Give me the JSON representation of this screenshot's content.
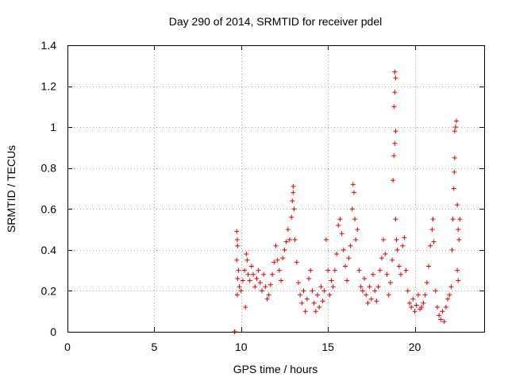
{
  "chart_data": {
    "type": "scatter",
    "title": "Day 290 of 2014, SRMTID for receiver pdel",
    "xlabel": "GPS time / hours",
    "ylabel": "SRMTID / TECUs",
    "xlim": [
      0,
      24
    ],
    "ylim": [
      0,
      1.4
    ],
    "x_ticks": [
      0,
      5,
      10,
      15,
      20
    ],
    "x_tick_labels": [
      "0",
      "5",
      "10",
      "15",
      "20"
    ],
    "y_ticks": [
      0,
      0.2,
      0.4,
      0.6,
      0.8,
      1.0,
      1.2,
      1.4
    ],
    "y_tick_labels": [
      "0",
      "0.2",
      "0.4",
      "0.6",
      "0.8",
      "1",
      "1.2",
      "1.4"
    ],
    "grid": true,
    "marker_color": "#e00000",
    "series": [
      {
        "name": "SRMTID",
        "marker": "plus",
        "points": [
          [
            9.62,
            0.0
          ],
          [
            9.64,
            0.0
          ],
          [
            9.75,
            0.49
          ],
          [
            9.78,
            0.45
          ],
          [
            9.8,
            0.42
          ],
          [
            9.75,
            0.35
          ],
          [
            9.8,
            0.26
          ],
          [
            9.78,
            0.18
          ],
          [
            9.85,
            0.3
          ],
          [
            9.9,
            0.22
          ],
          [
            10.0,
            0.2
          ],
          [
            10.1,
            0.25
          ],
          [
            10.2,
            0.3
          ],
          [
            10.25,
            0.12
          ],
          [
            10.3,
            0.38
          ],
          [
            10.35,
            0.35
          ],
          [
            10.4,
            0.28
          ],
          [
            10.5,
            0.25
          ],
          [
            10.6,
            0.32
          ],
          [
            10.7,
            0.28
          ],
          [
            10.8,
            0.22
          ],
          [
            10.9,
            0.26
          ],
          [
            11.0,
            0.3
          ],
          [
            11.1,
            0.24
          ],
          [
            11.2,
            0.2
          ],
          [
            11.3,
            0.28
          ],
          [
            11.4,
            0.22
          ],
          [
            11.5,
            0.16
          ],
          [
            11.6,
            0.18
          ],
          [
            11.7,
            0.23
          ],
          [
            11.8,
            0.28
          ],
          [
            11.9,
            0.34
          ],
          [
            12.0,
            0.42
          ],
          [
            12.1,
            0.35
          ],
          [
            12.2,
            0.3
          ],
          [
            12.3,
            0.25
          ],
          [
            12.4,
            0.36
          ],
          [
            12.5,
            0.4
          ],
          [
            12.6,
            0.44
          ],
          [
            12.7,
            0.5
          ],
          [
            12.8,
            0.45
          ],
          [
            12.9,
            0.56
          ],
          [
            12.95,
            0.64
          ],
          [
            13.0,
            0.68
          ],
          [
            13.0,
            0.71
          ],
          [
            13.05,
            0.6
          ],
          [
            13.1,
            0.45
          ],
          [
            13.2,
            0.34
          ],
          [
            13.3,
            0.24
          ],
          [
            13.4,
            0.18
          ],
          [
            13.5,
            0.14
          ],
          [
            13.6,
            0.2
          ],
          [
            13.7,
            0.1
          ],
          [
            13.8,
            0.16
          ],
          [
            13.9,
            0.26
          ],
          [
            14.0,
            0.3
          ],
          [
            14.1,
            0.2
          ],
          [
            14.2,
            0.14
          ],
          [
            14.3,
            0.1
          ],
          [
            14.4,
            0.18
          ],
          [
            14.5,
            0.12
          ],
          [
            14.6,
            0.22
          ],
          [
            14.7,
            0.15
          ],
          [
            14.8,
            0.2
          ],
          [
            14.9,
            0.45
          ],
          [
            15.0,
            0.3
          ],
          [
            15.1,
            0.18
          ],
          [
            15.2,
            0.25
          ],
          [
            15.3,
            0.22
          ],
          [
            15.4,
            0.3
          ],
          [
            15.5,
            0.38
          ],
          [
            15.6,
            0.52
          ],
          [
            15.7,
            0.55
          ],
          [
            15.8,
            0.48
          ],
          [
            15.9,
            0.4
          ],
          [
            16.0,
            0.32
          ],
          [
            16.1,
            0.25
          ],
          [
            16.2,
            0.36
          ],
          [
            16.3,
            0.42
          ],
          [
            16.4,
            0.6
          ],
          [
            16.45,
            0.72
          ],
          [
            16.5,
            0.68
          ],
          [
            16.55,
            0.55
          ],
          [
            16.6,
            0.45
          ],
          [
            16.7,
            0.5
          ],
          [
            16.8,
            0.3
          ],
          [
            16.9,
            0.22
          ],
          [
            17.0,
            0.2
          ],
          [
            17.1,
            0.26
          ],
          [
            17.2,
            0.18
          ],
          [
            17.3,
            0.14
          ],
          [
            17.4,
            0.22
          ],
          [
            17.5,
            0.16
          ],
          [
            17.6,
            0.28
          ],
          [
            17.7,
            0.2
          ],
          [
            17.8,
            0.15
          ],
          [
            17.9,
            0.22
          ],
          [
            18.0,
            0.3
          ],
          [
            18.1,
            0.36
          ],
          [
            18.2,
            0.45
          ],
          [
            18.3,
            0.38
          ],
          [
            18.4,
            0.28
          ],
          [
            18.5,
            0.18
          ],
          [
            18.6,
            0.24
          ],
          [
            18.7,
            0.35
          ],
          [
            18.75,
            0.74
          ],
          [
            18.8,
            0.86
          ],
          [
            18.85,
            0.92
          ],
          [
            18.9,
            0.98
          ],
          [
            18.8,
            1.1
          ],
          [
            18.85,
            1.17
          ],
          [
            18.9,
            1.24
          ],
          [
            18.85,
            1.27
          ],
          [
            18.9,
            0.55
          ],
          [
            18.95,
            0.45
          ],
          [
            19.0,
            0.4
          ],
          [
            19.1,
            0.32
          ],
          [
            19.2,
            0.28
          ],
          [
            19.3,
            0.42
          ],
          [
            19.4,
            0.46
          ],
          [
            19.5,
            0.3
          ],
          [
            19.6,
            0.2
          ],
          [
            19.7,
            0.14
          ],
          [
            19.8,
            0.12
          ],
          [
            19.9,
            0.16
          ],
          [
            20.0,
            0.1
          ],
          [
            20.1,
            0.13
          ],
          [
            20.2,
            0.18
          ],
          [
            20.3,
            0.11
          ],
          [
            20.4,
            0.12
          ],
          [
            20.5,
            0.14
          ],
          [
            20.6,
            0.18
          ],
          [
            20.7,
            0.24
          ],
          [
            20.8,
            0.32
          ],
          [
            20.9,
            0.42
          ],
          [
            21.0,
            0.5
          ],
          [
            21.05,
            0.55
          ],
          [
            21.1,
            0.44
          ],
          [
            21.2,
            0.2
          ],
          [
            21.3,
            0.12
          ],
          [
            21.4,
            0.08
          ],
          [
            21.5,
            0.06
          ],
          [
            21.6,
            0.1
          ],
          [
            21.7,
            0.05
          ],
          [
            21.8,
            0.12
          ],
          [
            21.9,
            0.16
          ],
          [
            22.0,
            0.18
          ],
          [
            22.1,
            0.22
          ],
          [
            22.15,
            0.4
          ],
          [
            22.2,
            0.55
          ],
          [
            22.25,
            0.7
          ],
          [
            22.28,
            0.78
          ],
          [
            22.3,
            0.85
          ],
          [
            22.3,
            0.98
          ],
          [
            22.35,
            1.0
          ],
          [
            22.4,
            1.03
          ],
          [
            22.45,
            0.62
          ],
          [
            22.5,
            0.5
          ],
          [
            22.55,
            0.45
          ],
          [
            22.6,
            0.55
          ],
          [
            22.45,
            0.3
          ],
          [
            22.5,
            0.25
          ]
        ]
      }
    ]
  }
}
